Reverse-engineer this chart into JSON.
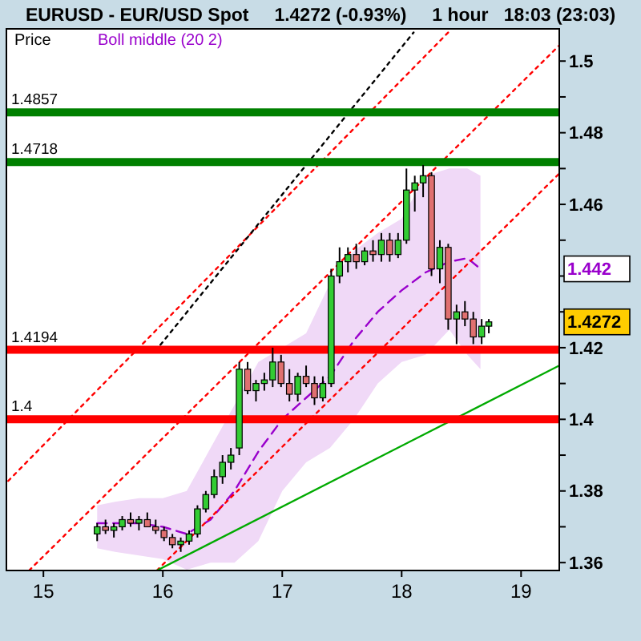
{
  "chart_data": {
    "type": "candlestick",
    "title": "EURUSD - EUR/USD Spot     1.4272 (-0.93%)     1 hour   18:03 (23:03)",
    "xlim": [
      14.69,
      19.32
    ],
    "ylim": [
      1.3578,
      1.509
    ],
    "xticks": [
      15,
      16,
      17,
      18,
      19
    ],
    "yticks": [
      1.36,
      {
        "value": 1.37,
        "label": null
      },
      1.38,
      {
        "value": 1.39,
        "label": null
      },
      1.4,
      {
        "value": 1.41,
        "label": null
      },
      1.42,
      {
        "value": 1.43,
        "label": null
      },
      {
        "value": 1.44,
        "label": null
      },
      {
        "value": 1.45,
        "label": null
      },
      1.46,
      {
        "value": 1.47,
        "label": null
      },
      1.48,
      {
        "value": 1.49,
        "label": null
      },
      1.5
    ],
    "grid": false,
    "legend": "top left",
    "series": [
      {
        "name": "Price",
        "color": "#000000",
        "x": [
          15.45,
          15.52,
          15.59,
          15.66,
          15.73,
          15.8,
          15.87,
          15.94,
          16.01,
          16.08,
          16.15,
          16.22,
          16.29,
          16.36,
          16.43,
          16.5,
          16.57,
          16.64,
          16.71,
          16.78,
          16.85,
          16.92,
          16.99,
          17.06,
          17.13,
          17.2,
          17.27,
          17.34,
          17.41,
          17.48,
          17.55,
          17.62,
          17.69,
          17.76,
          17.83,
          17.9,
          17.97,
          18.04,
          18.11,
          18.18,
          18.25,
          18.32,
          18.39,
          18.46,
          18.53,
          18.6,
          18.67,
          18.73
        ],
        "ohlc": [
          [
            1.368,
            1.371,
            1.366,
            1.37
          ],
          [
            1.37,
            1.372,
            1.368,
            1.369
          ],
          [
            1.369,
            1.371,
            1.367,
            1.37
          ],
          [
            1.37,
            1.373,
            1.369,
            1.372
          ],
          [
            1.372,
            1.374,
            1.37,
            1.371
          ],
          [
            1.371,
            1.373,
            1.369,
            1.372
          ],
          [
            1.372,
            1.374,
            1.37,
            1.37
          ],
          [
            1.37,
            1.372,
            1.368,
            1.369
          ],
          [
            1.369,
            1.37,
            1.366,
            1.367
          ],
          [
            1.367,
            1.368,
            1.364,
            1.365
          ],
          [
            1.365,
            1.367,
            1.363,
            1.366
          ],
          [
            1.366,
            1.369,
            1.365,
            1.368
          ],
          [
            1.368,
            1.376,
            1.367,
            1.375
          ],
          [
            1.375,
            1.38,
            1.374,
            1.379
          ],
          [
            1.379,
            1.386,
            1.378,
            1.384
          ],
          [
            1.384,
            1.39,
            1.382,
            1.388
          ],
          [
            1.388,
            1.392,
            1.386,
            1.39
          ],
          [
            1.392,
            1.416,
            1.39,
            1.414
          ],
          [
            1.414,
            1.416,
            1.407,
            1.408
          ],
          [
            1.408,
            1.411,
            1.405,
            1.41
          ],
          [
            1.41,
            1.413,
            1.408,
            1.411
          ],
          [
            1.411,
            1.42,
            1.409,
            1.416
          ],
          [
            1.416,
            1.418,
            1.409,
            1.41
          ],
          [
            1.41,
            1.414,
            1.405,
            1.407
          ],
          [
            1.407,
            1.413,
            1.405,
            1.412
          ],
          [
            1.412,
            1.415,
            1.409,
            1.41
          ],
          [
            1.41,
            1.412,
            1.404,
            1.406
          ],
          [
            1.406,
            1.412,
            1.405,
            1.41
          ],
          [
            1.41,
            1.442,
            1.409,
            1.44
          ],
          [
            1.44,
            1.448,
            1.438,
            1.444
          ],
          [
            1.444,
            1.448,
            1.441,
            1.446
          ],
          [
            1.446,
            1.449,
            1.442,
            1.444
          ],
          [
            1.444,
            1.448,
            1.443,
            1.447
          ],
          [
            1.447,
            1.45,
            1.444,
            1.446
          ],
          [
            1.446,
            1.452,
            1.444,
            1.45
          ],
          [
            1.45,
            1.452,
            1.444,
            1.446
          ],
          [
            1.446,
            1.452,
            1.445,
            1.45
          ],
          [
            1.45,
            1.47,
            1.449,
            1.464
          ],
          [
            1.464,
            1.468,
            1.458,
            1.466
          ],
          [
            1.466,
            1.471,
            1.462,
            1.468
          ],
          [
            1.468,
            1.469,
            1.44,
            1.442
          ],
          [
            1.442,
            1.45,
            1.438,
            1.448
          ],
          [
            1.448,
            1.449,
            1.425,
            1.428
          ],
          [
            1.428,
            1.432,
            1.421,
            1.43
          ],
          [
            1.43,
            1.433,
            1.426,
            1.428
          ],
          [
            1.428,
            1.43,
            1.421,
            1.423
          ],
          [
            1.423,
            1.428,
            1.421,
            1.426
          ],
          [
            1.426,
            1.428,
            1.424,
            1.4272
          ]
        ]
      },
      {
        "name": "Boll middle (20 2)",
        "type": "line",
        "color": "#9900cc",
        "line_style": "dashed",
        "marker": "none",
        "x": [
          15.45,
          15.6,
          15.8,
          16.0,
          16.2,
          16.4,
          16.6,
          16.8,
          17.0,
          17.2,
          17.4,
          17.6,
          17.8,
          18.0,
          18.2,
          18.4,
          18.55,
          18.66
        ],
        "values": [
          1.371,
          1.371,
          1.371,
          1.37,
          1.368,
          1.372,
          1.38,
          1.391,
          1.4,
          1.406,
          1.412,
          1.422,
          1.43,
          1.436,
          1.441,
          1.444,
          1.445,
          1.442
        ],
        "upper": [
          1.376,
          1.377,
          1.378,
          1.378,
          1.38,
          1.392,
          1.404,
          1.416,
          1.42,
          1.424,
          1.438,
          1.447,
          1.452,
          1.456,
          1.468,
          1.47,
          1.47,
          1.468
        ],
        "lower": [
          1.364,
          1.363,
          1.362,
          1.361,
          1.358,
          1.36,
          1.36,
          1.366,
          1.38,
          1.388,
          1.392,
          1.4,
          1.41,
          1.416,
          1.418,
          1.425,
          1.418,
          1.414
        ]
      },
      {
        "type": "line",
        "color": "#ff0000",
        "line_style": "dotted",
        "marker": "none",
        "x": [
          14.705,
          18.39
        ],
        "values": [
          1.3828,
          1.508
        ]
      },
      {
        "type": "line",
        "color": "#ff0000",
        "line_style": "dotted",
        "marker": "none",
        "x": [
          14.88,
          19.32
        ],
        "values": [
          1.3578,
          1.5044
        ]
      },
      {
        "type": "line",
        "color": "#ff0000",
        "line_style": "dotted",
        "marker": "none",
        "x": [
          15.95,
          19.32
        ],
        "values": [
          1.3578,
          1.4686
        ]
      },
      {
        "type": "line",
        "color": "#000000",
        "line_style": "dotted",
        "marker": "none",
        "x": [
          15.98,
          18.1
        ],
        "values": [
          1.4208,
          1.508
        ]
      },
      {
        "type": "line",
        "color": "#00aa00",
        "line_style": "solid",
        "marker": "none",
        "x": [
          15.95,
          19.32
        ],
        "values": [
          1.3578,
          1.415
        ]
      }
    ],
    "ref_lines": [
      {
        "axis": "y",
        "value": 1.4857,
        "label": "1.4857",
        "color": "#008000"
      },
      {
        "axis": "y",
        "value": 1.4718,
        "label": "1.4718",
        "color": "#008000"
      },
      {
        "axis": "y",
        "value": 1.4194,
        "label": "1.4194",
        "color": "#ff0000"
      },
      {
        "axis": "y",
        "value": 1.4,
        "label": "1.4",
        "color": "#ff0000"
      }
    ],
    "annotations": [
      "1.442",
      "1.4272"
    ]
  }
}
